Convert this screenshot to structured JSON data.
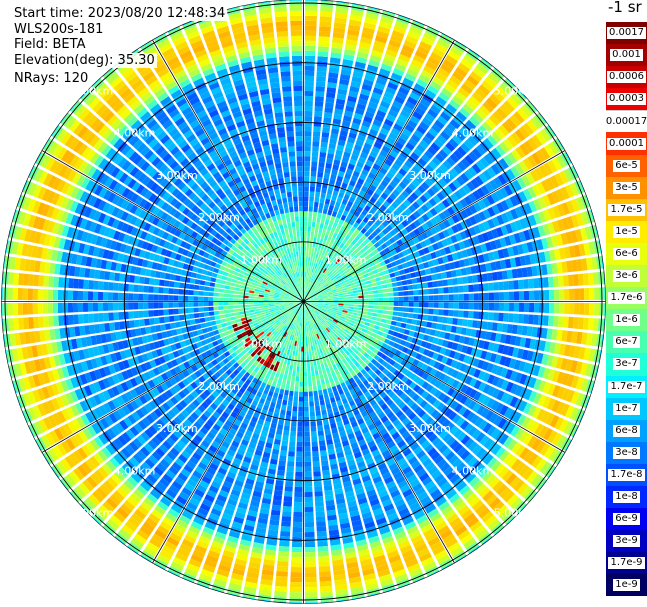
{
  "header": {
    "start_time": "Start time: 2023/08/20 12:48:34",
    "instrument": "WLS200s-181",
    "field": "Field: BETA",
    "elevation": "Elevation(deg): 35.30",
    "nrays": "NRays: 120",
    "unit": "-1 sr"
  },
  "colorbar": {
    "entries": [
      {
        "label": "0.0017",
        "color": "#800000"
      },
      {
        "label": "0.001",
        "color": "#a30000"
      },
      {
        "label": "0.0006",
        "color": "#c80000"
      },
      {
        "label": "0.0003",
        "color": "#ee0000"
      },
      {
        "label": "0.00017",
        "color": "#ffffff"
      },
      {
        "label": "0.0001",
        "color": "#ff3000"
      },
      {
        "label": "6e-5",
        "color": "#ff6000"
      },
      {
        "label": "3e-5",
        "color": "#ff9000"
      },
      {
        "label": "1.7e-5",
        "color": "#ffc000"
      },
      {
        "label": "1e-5",
        "color": "#ffec00"
      },
      {
        "label": "6e-6",
        "color": "#e8ff10"
      },
      {
        "label": "3e-6",
        "color": "#c0ff38"
      },
      {
        "label": "1.7e-6",
        "color": "#98ff60"
      },
      {
        "label": "1e-6",
        "color": "#70ff88"
      },
      {
        "label": "6e-7",
        "color": "#48ffb0"
      },
      {
        "label": "3e-7",
        "color": "#20ffd8"
      },
      {
        "label": "1.7e-7",
        "color": "#00f0ff"
      },
      {
        "label": "1e-7",
        "color": "#00c8ff"
      },
      {
        "label": "6e-8",
        "color": "#00a0ff"
      },
      {
        "label": "3e-8",
        "color": "#0078ff"
      },
      {
        "label": "1.7e-8",
        "color": "#0050ff"
      },
      {
        "label": "1e-8",
        "color": "#0028ff"
      },
      {
        "label": "6e-9",
        "color": "#0000f0"
      },
      {
        "label": "3e-9",
        "color": "#0000c0"
      },
      {
        "label": "1.7e-9",
        "color": "#000090"
      },
      {
        "label": "1e-9",
        "color": "#000060"
      }
    ]
  },
  "chart_data": {
    "type": "heatmap",
    "projection": "polar (PPI)",
    "field": "BETA",
    "nrays": 120,
    "range_rings_km": [
      1,
      2,
      3,
      4,
      5
    ],
    "range_ring_labels": [
      "1.00km",
      "2.00km",
      "3.00km",
      "4.00km",
      "5.00km"
    ],
    "spokes_deg": [
      0,
      30,
      60,
      90,
      120,
      150,
      180,
      210,
      240,
      270,
      300,
      330
    ],
    "max_range_km": 5.9,
    "features": {
      "background_log10": -8.0,
      "aerosol_ring_km": 4.6,
      "aerosol_ring_log10": -5.4,
      "near_field_km": 1.5,
      "near_field_log10": -7.1,
      "strong_targets_arc_km": [
        0.9,
        1.3
      ],
      "strong_targets_arc_azimuth_deg": [
        200,
        255
      ],
      "strong_targets_log10": -3.5
    }
  }
}
